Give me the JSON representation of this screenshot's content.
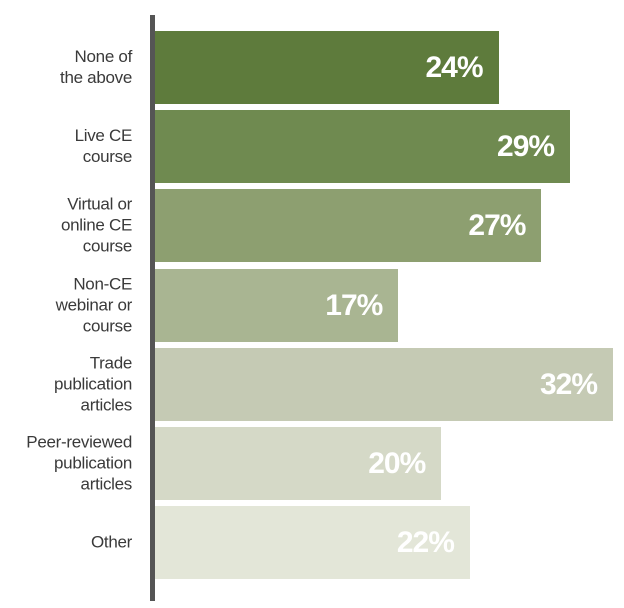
{
  "chart_data": {
    "type": "bar",
    "orientation": "horizontal",
    "categories": [
      "None of\nthe above",
      "Live CE\ncourse",
      "Virtual or\nonline CE\ncourse",
      "Non-CE\nwebinar or\ncourse",
      "Trade\npublication\narticles",
      "Peer-reviewed\npublication\narticles",
      "Other"
    ],
    "values": [
      24,
      29,
      27,
      17,
      32,
      20,
      22
    ],
    "value_labels": [
      "24%",
      "29%",
      "27%",
      "17%",
      "32%",
      "20%",
      "22%"
    ],
    "colors": [
      "#5e7b3c",
      "#6f8a50",
      "#8d9f70",
      "#a9b592",
      "#c5cab4",
      "#d5d9c7",
      "#e3e6d8"
    ]
  }
}
